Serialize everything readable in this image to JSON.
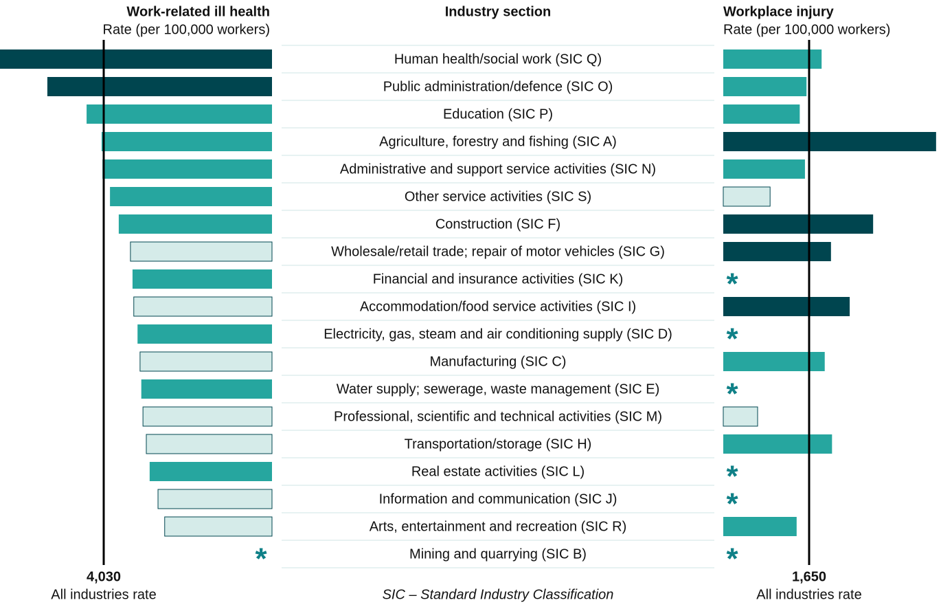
{
  "chart_data": {
    "type": "butterfly-bar",
    "left_title": "Work-related ill health",
    "left_subtitle": "Rate (per 100,000 workers)",
    "center_title": "Industry section",
    "right_title": "Workplace injury",
    "right_subtitle": "Rate (per 100,000 workers)",
    "note": "SIC – Standard Industry Classification",
    "reference_label": "All industries rate",
    "null_marker": "*",
    "null_marker_color": "#0f8087",
    "categories": [
      "Human health/social work (SIC Q)",
      "Public administration/defence (SIC O)",
      "Education (SIC P)",
      "Agriculture, forestry and fishing (SIC A)",
      "Administrative and support service activities (SIC N)",
      "Other service activities (SIC S)",
      "Construction (SIC F)",
      "Wholesale/retail trade; repair of motor vehicles (SIC G)",
      "Financial and insurance activities (SIC K)",
      "Accommodation/food service activities (SIC I)",
      "Electricity, gas, steam and air conditioning supply (SIC D)",
      "Manufacturing (SIC C)",
      "Water supply; sewerage, waste management (SIC E)",
      "Professional, scientific and technical activities (SIC M)",
      "Transportation/storage (SIC H)",
      "Real estate activities (SIC L)",
      "Information and communication (SIC J)",
      "Arts, entertainment and recreation (SIC R)",
      "Mining and quarrying (SIC B)"
    ],
    "series": [
      {
        "name": "Work-related ill health",
        "side": "left",
        "reference": {
          "value": 4030,
          "label": "4,030"
        },
        "values": [
          6600,
          5380,
          4440,
          4080,
          4060,
          3880,
          3670,
          3390,
          3340,
          3310,
          3220,
          3160,
          3130,
          3090,
          3010,
          2930,
          2730,
          2570,
          null
        ],
        "colors": [
          "#00454f",
          "#00454f",
          "#26a69f",
          "#26a69f",
          "#26a69f",
          "#26a69f",
          "#26a69f",
          "#d5ebe9",
          "#26a69f",
          "#d5ebe9",
          "#26a69f",
          "#d5ebe9",
          "#26a69f",
          "#d5ebe9",
          "#d5ebe9",
          "#26a69f",
          "#d5ebe9",
          "#d5ebe9",
          null
        ]
      },
      {
        "name": "Workplace injury",
        "side": "right",
        "reference": {
          "value": 1650,
          "label": "1,650"
        },
        "values": [
          1890,
          1600,
          1470,
          4090,
          1570,
          900,
          2880,
          2070,
          null,
          2430,
          null,
          1950,
          null,
          660,
          2090,
          null,
          null,
          1410,
          null
        ],
        "colors": [
          "#26a69f",
          "#26a69f",
          "#26a69f",
          "#00454f",
          "#26a69f",
          "#d5ebe9",
          "#00454f",
          "#00454f",
          null,
          "#00454f",
          null,
          "#26a69f",
          null,
          "#d5ebe9",
          "#26a69f",
          null,
          null,
          "#26a69f",
          null
        ]
      }
    ]
  }
}
